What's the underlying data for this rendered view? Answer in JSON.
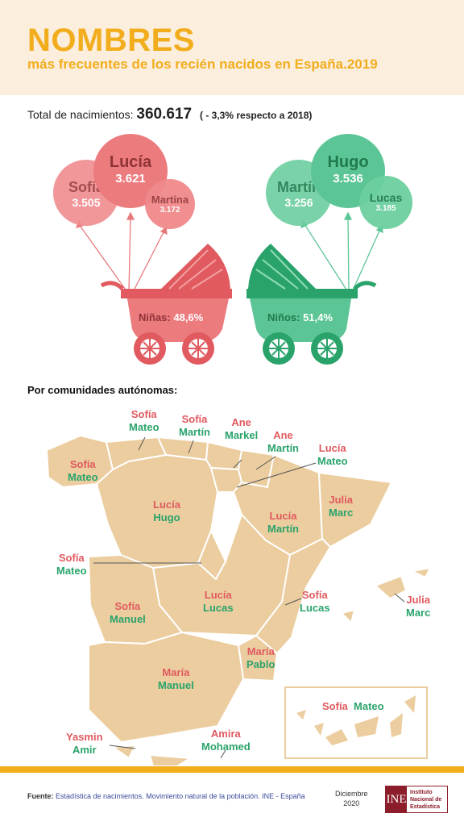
{
  "header": {
    "title": "NOMBRES",
    "subtitle": "más frecuentes de los recién nacidos en España.2019"
  },
  "births": {
    "label": "Total de nacimientos:",
    "total": "360.617",
    "change": "( - 3,3% respecto a 2018)"
  },
  "girls": {
    "balloons": [
      {
        "name": "Lucía",
        "value": "3.621"
      },
      {
        "name": "Sofía",
        "value": "3.505"
      },
      {
        "name": "Martina",
        "value": "3.172"
      }
    ],
    "label": "Niñas:",
    "pct": "48,6%",
    "color": "#e8797b"
  },
  "boys": {
    "balloons": [
      {
        "name": "Hugo",
        "value": "3.536"
      },
      {
        "name": "Martín",
        "value": "3.256"
      },
      {
        "name": "Lucas",
        "value": "3.185"
      }
    ],
    "label": "Niños:",
    "pct": "51,4%",
    "color": "#5cc596"
  },
  "regions_heading": "Por comunidades autónomas:",
  "regions": [
    {
      "f": "Sofía",
      "m": "Mateo"
    },
    {
      "f": "Sofía",
      "m": "Martín"
    },
    {
      "f": "Ane",
      "m": "Markel"
    },
    {
      "f": "Ane",
      "m": "Martín"
    },
    {
      "f": "Lucía",
      "m": "Mateo"
    },
    {
      "f": "Sofía",
      "m": "Mateo"
    },
    {
      "f": "Lucía",
      "m": "Hugo"
    },
    {
      "f": "Julia",
      "m": "Marc"
    },
    {
      "f": "Lucía",
      "m": "Martín"
    },
    {
      "f": "Sofía",
      "m": "Mateo"
    },
    {
      "f": "Lucía",
      "m": "Lucas"
    },
    {
      "f": "Sofía",
      "m": "Manuel"
    },
    {
      "f": "Sofía",
      "m": "Lucas"
    },
    {
      "f": "Julia",
      "m": "Marc"
    },
    {
      "f": "María",
      "m": "Pablo"
    },
    {
      "f": "María",
      "m": "Manuel"
    },
    {
      "f": "Sofía",
      "m": "Mateo"
    },
    {
      "f": "Yasmin",
      "m": "Amir"
    },
    {
      "f": "Amira",
      "m": "Mohamed"
    }
  ],
  "footer": {
    "source_label": "Fuente:",
    "source": "Estadística de nacimientos. Movimiento natural de la población. INE - España",
    "date_month": "Diciembre",
    "date_year": "2020",
    "logo_mark": "INE",
    "logo_text_1": "Instituto",
    "logo_text_2": "Nacional de",
    "logo_text_3": "Estadística"
  }
}
